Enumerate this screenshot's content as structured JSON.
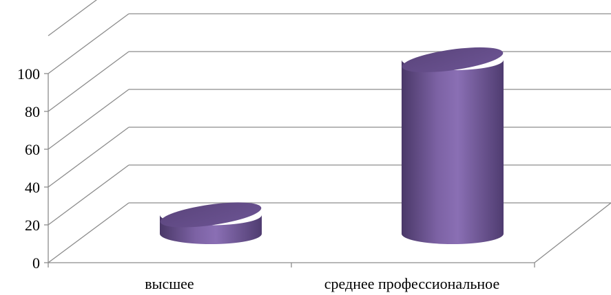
{
  "chart_data": {
    "type": "bar",
    "style": "3d-cylinder",
    "categories": [
      "высшее",
      "среднее профессиональное"
    ],
    "series": [
      {
        "values": [
          10,
          92
        ]
      }
    ],
    "ylim": [
      0,
      100
    ],
    "yticks": [
      "0",
      "20",
      "40",
      "60",
      "80",
      "100"
    ],
    "grid": true,
    "legend": "none",
    "bar_color": "#8066a8"
  }
}
